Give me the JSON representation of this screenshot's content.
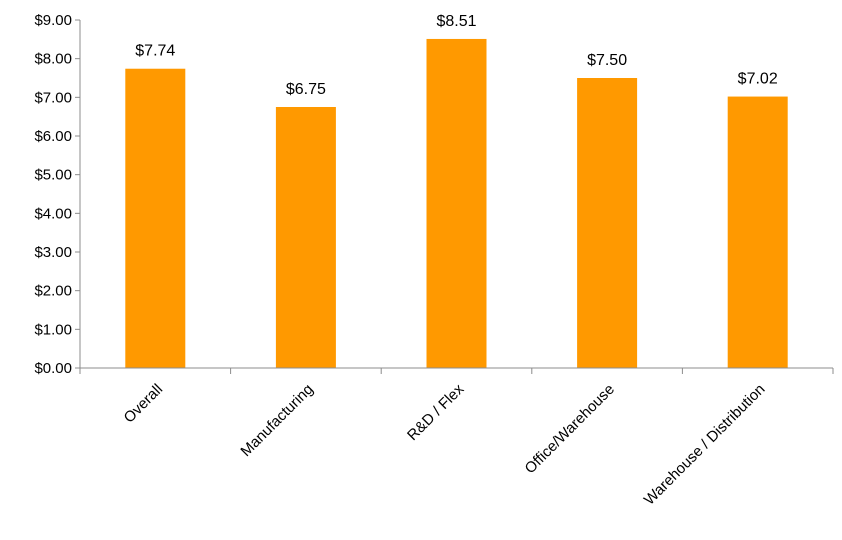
{
  "chart_data": {
    "type": "bar",
    "categories": [
      "Overall",
      "Manufacturing",
      "R&D / Flex",
      "Office/Warehouse",
      "Warehouse / Distribution"
    ],
    "values": [
      7.74,
      6.75,
      8.51,
      7.5,
      7.02
    ],
    "data_labels": [
      "$7.74",
      "$6.75",
      "$8.51",
      "$7.50",
      "$7.02"
    ],
    "y_ticks": [
      "$0.00",
      "$1.00",
      "$2.00",
      "$3.00",
      "$4.00",
      "$5.00",
      "$6.00",
      "$7.00",
      "$8.00",
      "$9.00"
    ],
    "ylim": [
      0,
      9
    ],
    "grid": false,
    "legend": "none",
    "bar_color": "#ff9900"
  }
}
